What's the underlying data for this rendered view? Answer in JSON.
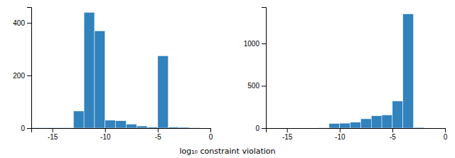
{
  "chart_data": [
    {
      "type": "histogram",
      "bins": [
        -17,
        -16,
        -15,
        -14,
        -13,
        -12,
        -11,
        -10,
        -9,
        -8,
        -7,
        -6,
        -5,
        -4,
        -3,
        -2,
        -1,
        0
      ],
      "values": [
        2,
        2,
        2,
        2,
        65,
        440,
        370,
        30,
        28,
        15,
        8,
        4,
        275,
        4,
        3,
        2,
        0
      ],
      "color": "#3182bd",
      "xlim": [
        -17,
        0
      ],
      "ylim": [
        0,
        460
      ],
      "xticks": [
        -15,
        -10,
        -5,
        0
      ],
      "yticks": [
        0,
        200,
        400
      ],
      "xlabel": "log₁₀ constraint violation"
    },
    {
      "type": "histogram",
      "bins": [
        -17,
        -16,
        -15,
        -14,
        -13,
        -12,
        -11,
        -10,
        -9,
        -8,
        -7,
        -6,
        -5,
        -4,
        -3,
        -2,
        -1,
        0
      ],
      "values": [
        0,
        0,
        0,
        0,
        0,
        5,
        55,
        58,
        70,
        110,
        145,
        155,
        320,
        1350,
        8,
        0,
        0
      ],
      "color": "#3182bd",
      "xlim": [
        -17,
        0
      ],
      "ylim": [
        0,
        1430
      ],
      "xticks": [
        -15,
        -10,
        -5,
        0
      ],
      "yticks": [
        0,
        500,
        1000
      ]
    }
  ]
}
